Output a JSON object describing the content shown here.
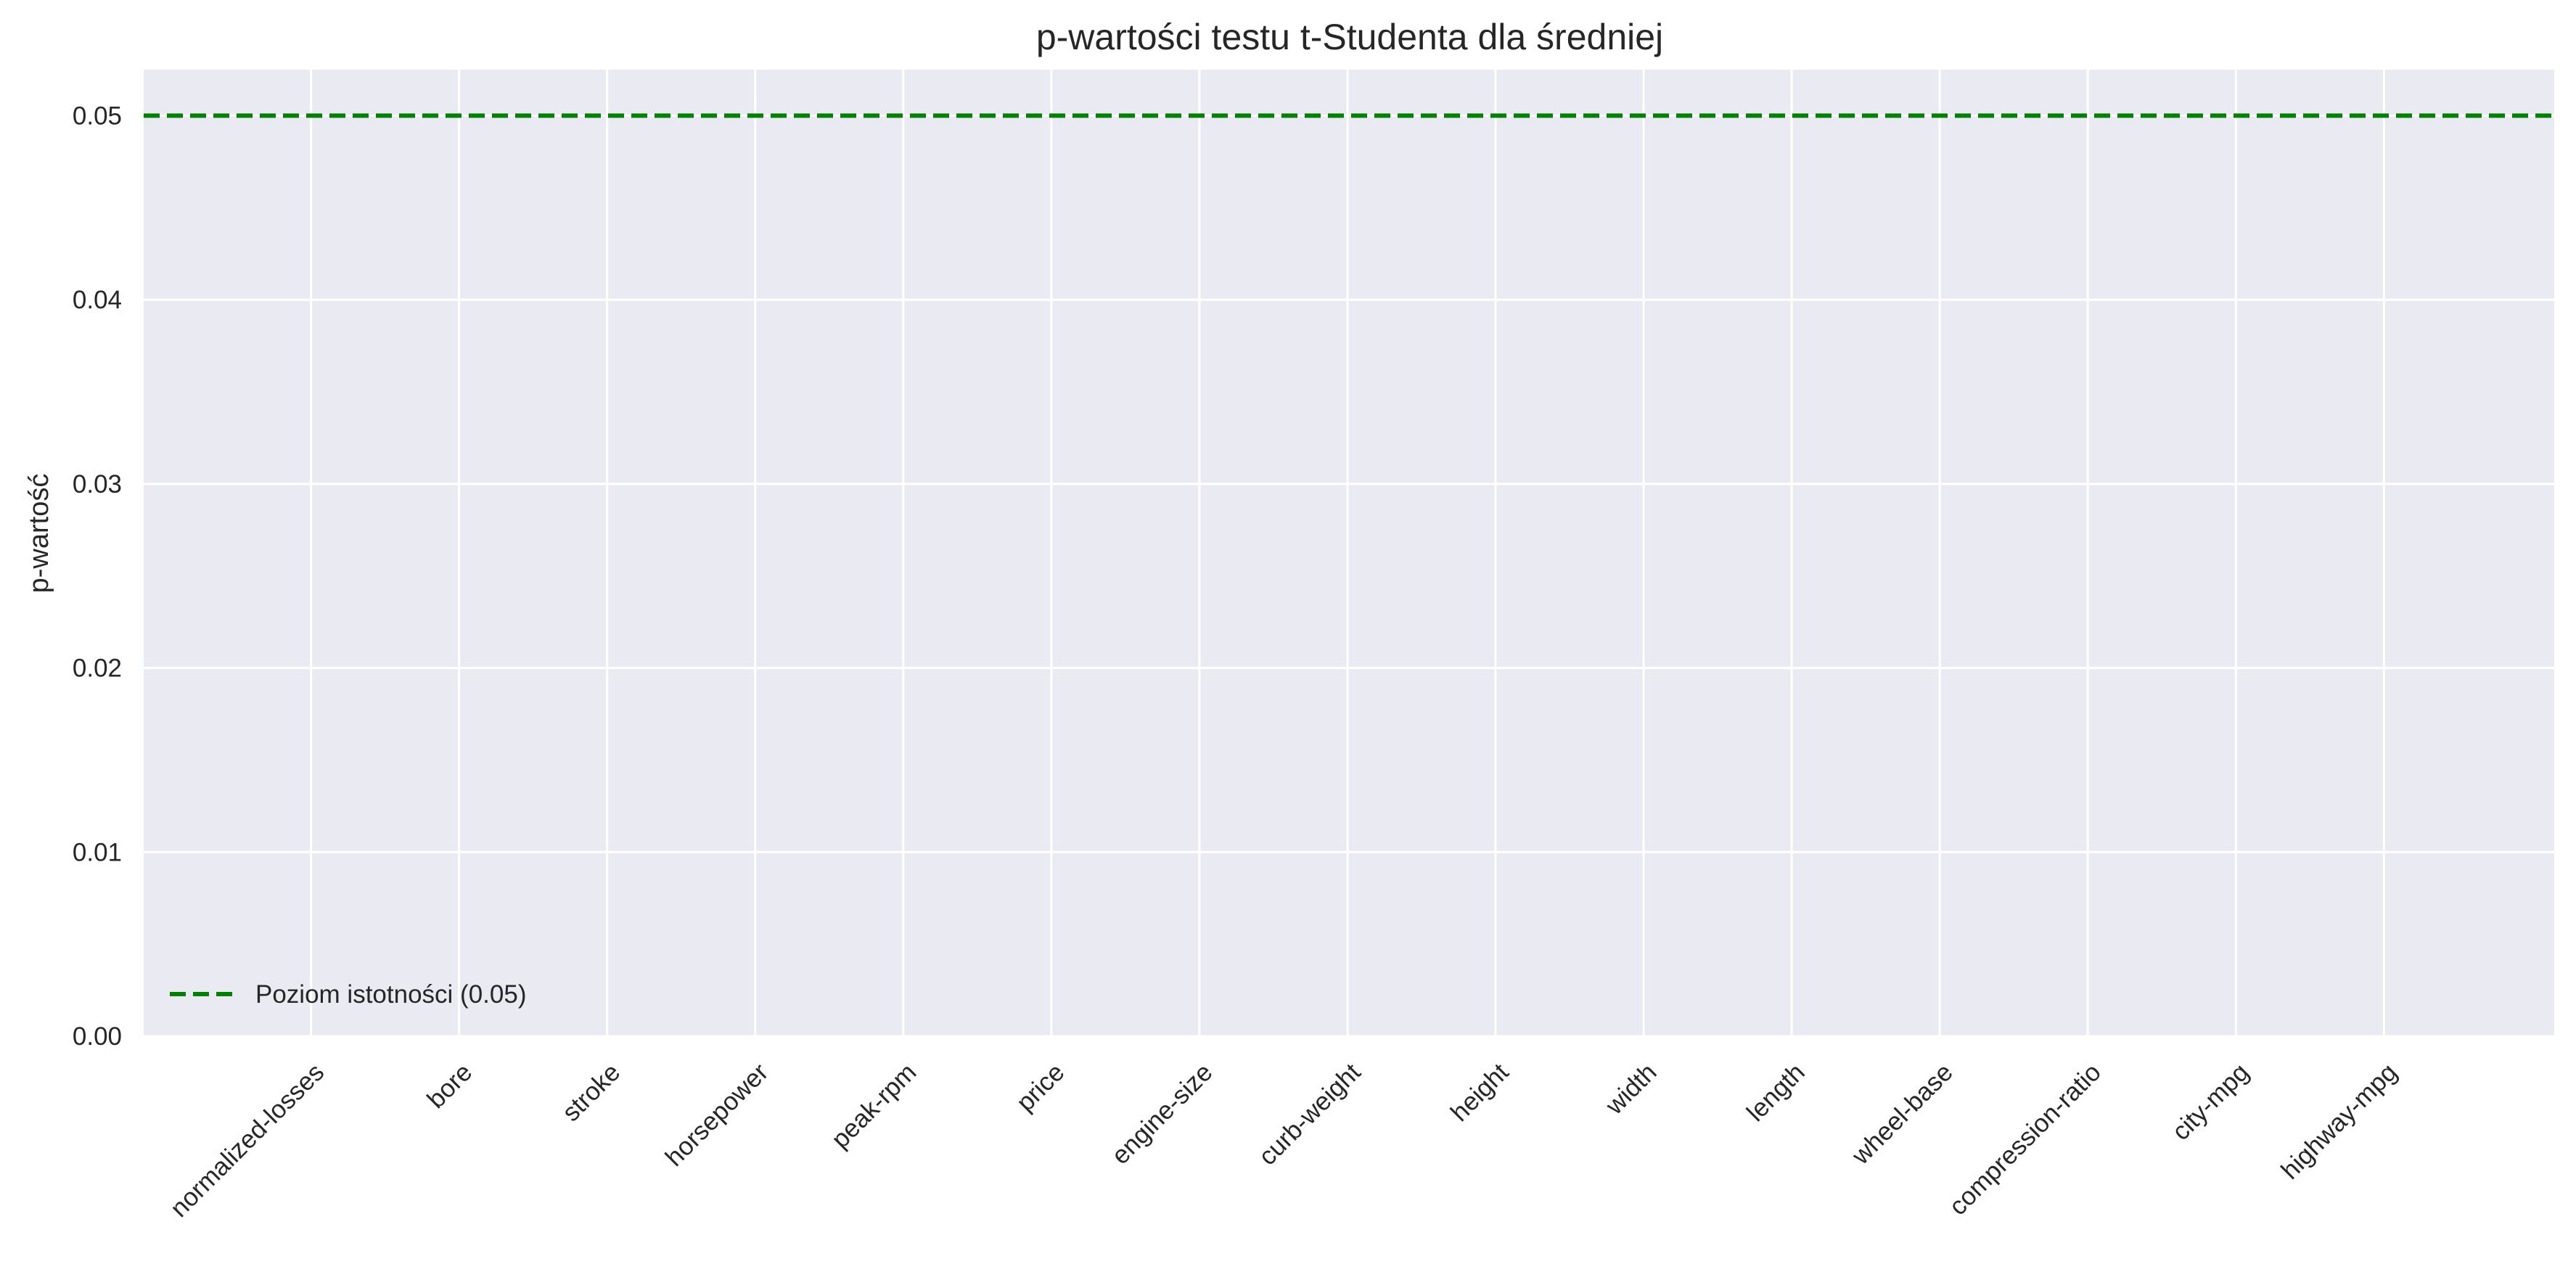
{
  "chart_data": {
    "type": "bar",
    "title": "p-wartości testu t-Studenta dla średniej",
    "xlabel": "",
    "ylabel": "p-wartość",
    "ylim": [
      0,
      0.0525
    ],
    "yticks": [
      "0.00",
      "0.01",
      "0.02",
      "0.03",
      "0.04",
      "0.05"
    ],
    "ytick_values": [
      0,
      0.01,
      0.02,
      0.03,
      0.04,
      0.05
    ],
    "categories": [
      "normalized-losses",
      "bore",
      "stroke",
      "horsepower",
      "peak-rpm",
      "price",
      "engine-size",
      "curb-weight",
      "height",
      "width",
      "length",
      "wheel-base",
      "compression-ratio",
      "city-mpg",
      "highway-mpg"
    ],
    "values": [
      0,
      0,
      0,
      0,
      0,
      0,
      0,
      0,
      0,
      0,
      0,
      0,
      0,
      0,
      0
    ],
    "reference_line": {
      "y": 0.05,
      "label": "Poziom istotności (0.05)",
      "style": "dashed",
      "color": "#008000"
    },
    "grid": true,
    "legend_position": "lower-left",
    "colors": {
      "background": "#EAEAF2",
      "grid": "#FFFFFF",
      "text": "#262626",
      "reference": "#008000"
    }
  }
}
